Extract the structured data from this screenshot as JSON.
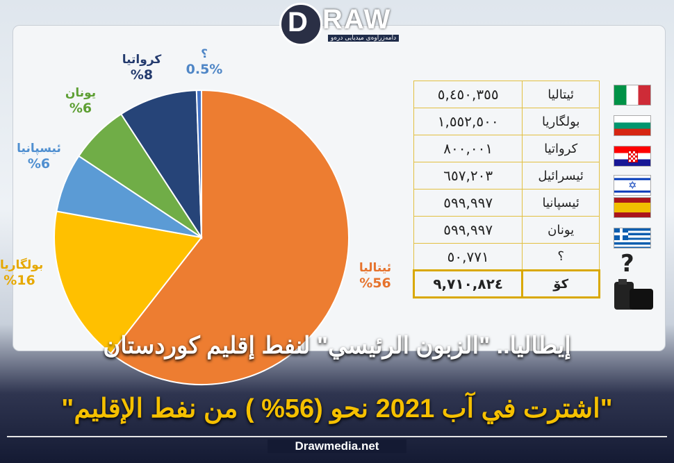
{
  "logo": {
    "text": "RAW",
    "mark": "D",
    "tagline": "دامەزراوەی میدیایی درەو"
  },
  "chart_data": {
    "type": "pie",
    "title": "",
    "slices": [
      {
        "label": "ئیتالیا",
        "value": 56,
        "display": "%56",
        "color": "#ed7d31",
        "label_color": "#e6732d"
      },
      {
        "label": "بولگاریا",
        "value": 16,
        "display": "%16",
        "color": "#ffc000",
        "label_color": "#e6a800"
      },
      {
        "label": "ئیسپانیا",
        "value": 6,
        "display": "%6",
        "color": "#5b9bd5",
        "label_color": "#4f8fd0"
      },
      {
        "label": "یونان",
        "value": 6,
        "display": "%6",
        "color": "#70ad47",
        "label_color": "#5e9f34"
      },
      {
        "label": "کرواتیا",
        "value": 8,
        "display": "%8",
        "color": "#264478",
        "label_color": "#243b6e"
      },
      {
        "label": "؟",
        "value": 0.5,
        "display": "0.5%",
        "color": "#4472c4",
        "label_color": "#4f86c6"
      }
    ],
    "table": {
      "rows": [
        {
          "country": "ئیتالیا",
          "value": "٥,٤٥٠,٣٥٥",
          "flag": "italy-flag"
        },
        {
          "country": "بولگاریا",
          "value": "١,٥٥٢,٥٠٠",
          "flag": "bulgaria-flag"
        },
        {
          "country": "کرواتیا",
          "value": "٨٠٠,٠٠١",
          "flag": "croatia-flag"
        },
        {
          "country": "ئیسرائیل",
          "value": "٦٥٧,٢٠٣",
          "flag": "israel-flag"
        },
        {
          "country": "ئیسپانیا",
          "value": "٥٩٩,٩٩٧",
          "flag": "spain-flag"
        },
        {
          "country": "یونان",
          "value": "٥٩٩,٩٩٧",
          "flag": "greece-flag"
        },
        {
          "country": "؟",
          "value": "٥٠,٧٧١",
          "flag": "question-icon"
        }
      ],
      "total": {
        "country": "کۆ",
        "value": "٩,٧١٠,٨٢٤",
        "icon": "oil-barrel-icon"
      }
    }
  },
  "headline": "إيطاليا.. \"الزبون الرئيسي\" لنفط إقليم كوردستان",
  "subhead": "\"اشترت في آب 2021 نحو (56% ) من نفط الإقليم\"",
  "footer": "Drawmedia.net"
}
